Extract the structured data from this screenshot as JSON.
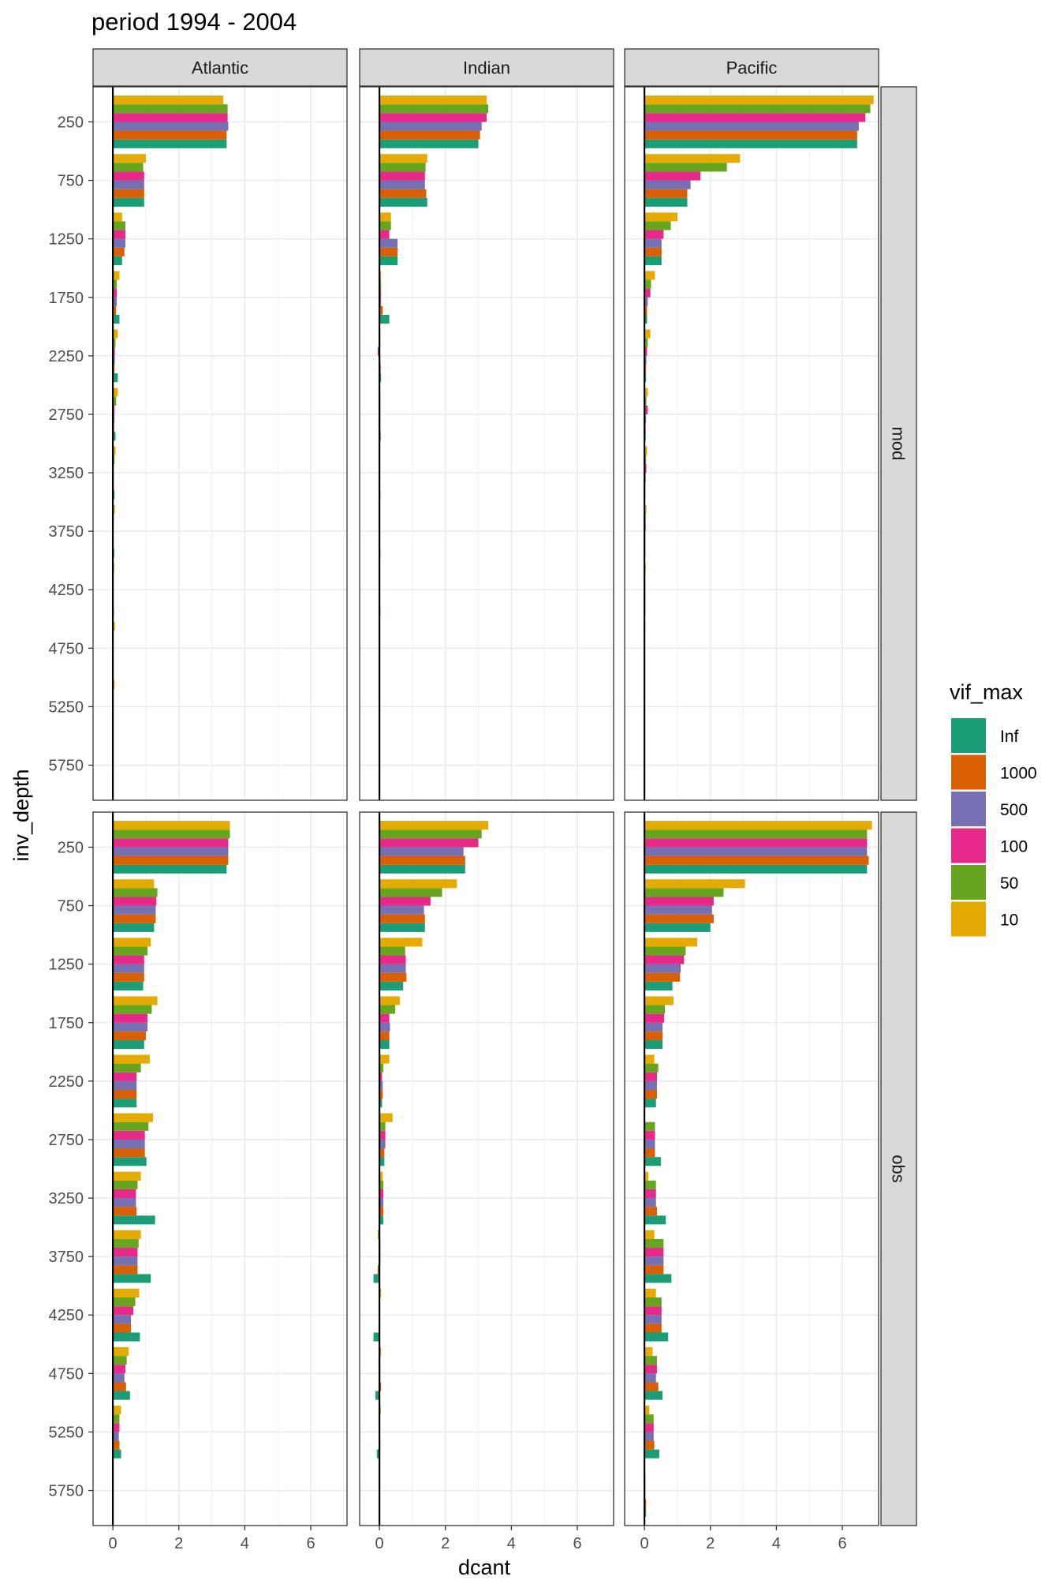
{
  "title": "period 1994 - 2004",
  "xlabel": "dcant",
  "ylabel": "inv_depth",
  "legend": {
    "title": "vif_max",
    "placement": "right",
    "items": [
      {
        "label": "Inf",
        "color": "#1B9E77"
      },
      {
        "label": "1000",
        "color": "#D95F02"
      },
      {
        "label": "500",
        "color": "#7570B3"
      },
      {
        "label": "100",
        "color": "#E7298A"
      },
      {
        "label": "50",
        "color": "#66A61E"
      },
      {
        "label": "10",
        "color": "#E6AB02"
      }
    ]
  },
  "chart_data": {
    "type": "bar",
    "orientation": "horizontal",
    "grid": true,
    "xlim": [
      -0.6,
      7.1
    ],
    "x_ticks": [
      "0",
      "2",
      "4",
      "6"
    ],
    "x_tick_values": [
      0,
      2,
      4,
      6
    ],
    "categories": [
      "250",
      "750",
      "1250",
      "1750",
      "2250",
      "2750",
      "3250",
      "3750",
      "4250",
      "4750",
      "5250",
      "5750"
    ],
    "series_order": [
      "Inf",
      "1000",
      "500",
      "100",
      "50",
      "10"
    ],
    "facet_cols": [
      "Atlantic",
      "Indian",
      "Pacific"
    ],
    "facet_rows": [
      "mod",
      "obs"
    ],
    "panels": [
      {
        "col": "Atlantic",
        "row": "mod",
        "series": [
          {
            "name": "Inf",
            "values": [
              3.45,
              0.95,
              0.28,
              0.2,
              0.15,
              0.08,
              0.05,
              0.04,
              0.03,
              0.02,
              0.02,
              0.0
            ]
          },
          {
            "name": "1000",
            "values": [
              3.45,
              0.95,
              0.35,
              0.1,
              0.05,
              0.04,
              0.03,
              0.02,
              0.01,
              0.01,
              0.01,
              0.0
            ]
          },
          {
            "name": "500",
            "values": [
              3.5,
              0.95,
              0.38,
              0.12,
              0.06,
              0.05,
              0.03,
              0.02,
              0.01,
              0.01,
              0.01,
              0.0
            ]
          },
          {
            "name": "100",
            "values": [
              3.48,
              0.95,
              0.38,
              0.12,
              0.06,
              0.05,
              0.03,
              0.02,
              0.01,
              0.01,
              0.01,
              0.0
            ]
          },
          {
            "name": "50",
            "values": [
              3.48,
              0.92,
              0.38,
              0.12,
              0.08,
              0.1,
              0.05,
              0.03,
              0.02,
              0.01,
              0.01,
              0.0
            ]
          },
          {
            "name": "10",
            "values": [
              3.35,
              1.0,
              0.28,
              0.2,
              0.15,
              0.15,
              0.08,
              0.06,
              0.04,
              0.06,
              0.05,
              0.0
            ]
          }
        ]
      },
      {
        "col": "Indian",
        "row": "mod",
        "series": [
          {
            "name": "Inf",
            "values": [
              3.0,
              1.45,
              0.55,
              0.3,
              0.05,
              0.04,
              0.03,
              0.03,
              0.03,
              0.02,
              0.02,
              0.0
            ]
          },
          {
            "name": "1000",
            "values": [
              3.05,
              1.42,
              0.55,
              0.1,
              0.04,
              0.03,
              0.02,
              0.02,
              0.02,
              0.02,
              0.02,
              0.0
            ]
          },
          {
            "name": "500",
            "values": [
              3.1,
              1.38,
              0.55,
              0.05,
              0.03,
              0.03,
              0.02,
              0.02,
              0.02,
              0.02,
              0.02,
              0.0
            ]
          },
          {
            "name": "100",
            "values": [
              3.25,
              1.38,
              0.3,
              0.05,
              -0.05,
              0.03,
              0.02,
              0.02,
              0.02,
              0.02,
              0.02,
              0.0
            ]
          },
          {
            "name": "50",
            "values": [
              3.3,
              1.4,
              0.35,
              0.05,
              0.03,
              0.03,
              0.02,
              0.02,
              0.02,
              0.02,
              0.02,
              0.0
            ]
          },
          {
            "name": "10",
            "values": [
              3.25,
              1.45,
              0.35,
              0.05,
              0.03,
              0.03,
              0.02,
              0.02,
              0.02,
              0.02,
              0.02,
              0.0
            ]
          }
        ]
      },
      {
        "col": "Pacific",
        "row": "mod",
        "series": [
          {
            "name": "Inf",
            "values": [
              6.45,
              1.3,
              0.52,
              0.08,
              0.05,
              0.04,
              0.03,
              0.03,
              0.03,
              0.02,
              0.02,
              0.0
            ]
          },
          {
            "name": "1000",
            "values": [
              6.45,
              1.3,
              0.52,
              0.08,
              0.05,
              0.04,
              0.03,
              0.03,
              0.03,
              0.02,
              0.02,
              0.0
            ]
          },
          {
            "name": "500",
            "values": [
              6.5,
              1.4,
              0.52,
              0.1,
              0.06,
              0.05,
              0.04,
              0.03,
              0.03,
              0.02,
              0.02,
              0.0
            ]
          },
          {
            "name": "100",
            "values": [
              6.7,
              1.7,
              0.58,
              0.18,
              0.08,
              0.1,
              0.06,
              0.04,
              0.03,
              0.02,
              0.02,
              0.0
            ]
          },
          {
            "name": "50",
            "values": [
              6.85,
              2.5,
              0.8,
              0.2,
              0.1,
              0.06,
              0.05,
              0.04,
              0.03,
              0.02,
              0.02,
              0.0
            ]
          },
          {
            "name": "10",
            "values": [
              6.95,
              2.9,
              1.0,
              0.32,
              0.18,
              0.1,
              0.08,
              0.06,
              0.04,
              0.03,
              0.02,
              0.0
            ]
          }
        ]
      },
      {
        "col": "Atlantic",
        "row": "obs",
        "series": [
          {
            "name": "Inf",
            "values": [
              3.45,
              1.25,
              0.92,
              0.95,
              0.72,
              1.02,
              1.28,
              1.15,
              0.82,
              0.52,
              0.25,
              0.02
            ]
          },
          {
            "name": "1000",
            "values": [
              3.5,
              1.3,
              0.95,
              1.0,
              0.72,
              0.97,
              0.72,
              0.75,
              0.55,
              0.4,
              0.2,
              0.02
            ]
          },
          {
            "name": "500",
            "values": [
              3.5,
              1.3,
              0.95,
              1.05,
              0.72,
              0.97,
              0.7,
              0.75,
              0.55,
              0.35,
              0.18,
              0.02
            ]
          },
          {
            "name": "100",
            "values": [
              3.5,
              1.32,
              0.95,
              1.05,
              0.72,
              0.97,
              0.7,
              0.75,
              0.62,
              0.38,
              0.2,
              0.02
            ]
          },
          {
            "name": "50",
            "values": [
              3.55,
              1.35,
              1.05,
              1.18,
              0.85,
              1.08,
              0.75,
              0.78,
              0.68,
              0.42,
              0.2,
              0.02
            ]
          },
          {
            "name": "10",
            "values": [
              3.55,
              1.25,
              1.15,
              1.35,
              1.12,
              1.22,
              0.85,
              0.85,
              0.8,
              0.48,
              0.25,
              0.02
            ]
          }
        ]
      },
      {
        "col": "Indian",
        "row": "obs",
        "series": [
          {
            "name": "Inf",
            "values": [
              2.6,
              1.38,
              0.72,
              0.3,
              0.08,
              0.15,
              0.12,
              -0.18,
              -0.18,
              -0.12,
              -0.08,
              0.02
            ]
          },
          {
            "name": "1000",
            "values": [
              2.6,
              1.38,
              0.82,
              0.3,
              0.1,
              0.15,
              0.12,
              -0.05,
              -0.02,
              0.05,
              0.03,
              0.02
            ]
          },
          {
            "name": "500",
            "values": [
              2.55,
              1.35,
              0.8,
              0.32,
              0.1,
              0.18,
              0.12,
              0.03,
              0.02,
              0.03,
              0.02,
              0.0
            ]
          },
          {
            "name": "100",
            "values": [
              3.0,
              1.55,
              0.8,
              0.3,
              0.08,
              0.18,
              0.12,
              0.03,
              0.02,
              0.03,
              0.02,
              0.0
            ]
          },
          {
            "name": "50",
            "values": [
              3.1,
              1.9,
              0.78,
              0.48,
              0.12,
              0.18,
              0.12,
              0.03,
              0.02,
              0.03,
              0.02,
              0.0
            ]
          },
          {
            "name": "10",
            "values": [
              3.3,
              2.35,
              1.3,
              0.62,
              0.3,
              0.4,
              0.1,
              -0.05,
              0.05,
              0.05,
              0.04,
              0.02
            ]
          }
        ]
      },
      {
        "col": "Pacific",
        "row": "obs",
        "series": [
          {
            "name": "Inf",
            "values": [
              6.75,
              2.0,
              0.85,
              0.55,
              0.35,
              0.5,
              0.65,
              0.82,
              0.72,
              0.55,
              0.45,
              0.05
            ]
          },
          {
            "name": "1000",
            "values": [
              6.8,
              2.1,
              1.08,
              0.55,
              0.38,
              0.32,
              0.38,
              0.58,
              0.52,
              0.42,
              0.3,
              0.05
            ]
          },
          {
            "name": "500",
            "values": [
              6.75,
              2.05,
              1.1,
              0.55,
              0.38,
              0.32,
              0.35,
              0.58,
              0.52,
              0.35,
              0.28,
              0.03
            ]
          },
          {
            "name": "100",
            "values": [
              6.75,
              2.1,
              1.2,
              0.6,
              0.38,
              0.32,
              0.35,
              0.58,
              0.52,
              0.38,
              0.28,
              0.03
            ]
          },
          {
            "name": "50",
            "values": [
              6.75,
              2.4,
              1.25,
              0.62,
              0.42,
              0.32,
              0.35,
              0.58,
              0.52,
              0.38,
              0.28,
              0.03
            ]
          },
          {
            "name": "10",
            "values": [
              6.9,
              3.05,
              1.6,
              0.88,
              0.3,
              0.02,
              0.12,
              0.3,
              0.35,
              0.25,
              0.15,
              0.02
            ]
          }
        ]
      }
    ]
  }
}
